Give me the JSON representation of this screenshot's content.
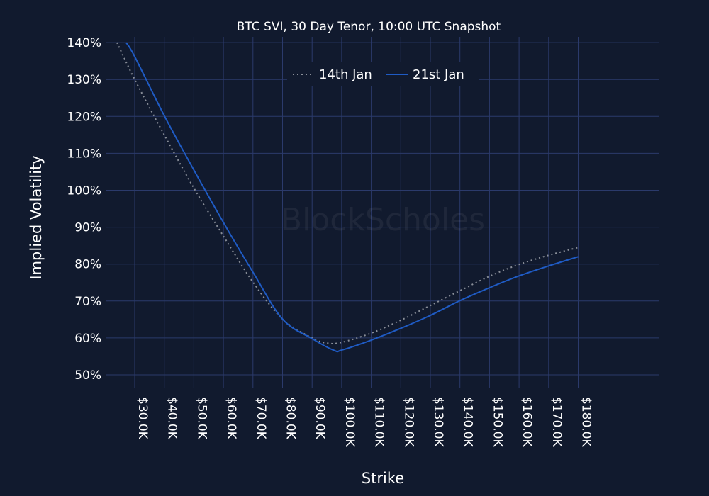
{
  "chart_data": {
    "type": "line",
    "title": "BTC SVI, 30 Day Tenor, 10:00 UTC Snapshot",
    "xlabel": "Strike",
    "ylabel": "Implied Volatility",
    "watermark": "BlockScholes",
    "x_ticks": [
      30000,
      40000,
      50000,
      60000,
      70000,
      80000,
      90000,
      100000,
      110000,
      120000,
      130000,
      140000,
      150000,
      160000,
      170000,
      180000
    ],
    "x_tick_labels": [
      "$30.0K",
      "$40.0K",
      "$50.0K",
      "$60.0K",
      "$70.0K",
      "$80.0K",
      "$90.0K",
      "$100.0K",
      "$110.0K",
      "$120.0K",
      "$130.0K",
      "$140.0K",
      "$150.0K",
      "$160.0K",
      "$170.0K",
      "$180.0K"
    ],
    "y_ticks": [
      50,
      60,
      70,
      80,
      90,
      100,
      110,
      120,
      130,
      140
    ],
    "y_tick_labels": [
      "50%",
      "60%",
      "70%",
      "80%",
      "90%",
      "100%",
      "110%",
      "120%",
      "130%",
      "140%"
    ],
    "ylim": [
      45,
      140
    ],
    "grid": true,
    "legend_position": "top-center",
    "series": [
      {
        "name": "14th Jan",
        "color": "#8a8f99",
        "style": "dotted",
        "x": [
          24000,
          30000,
          40000,
          50000,
          60000,
          70000,
          80000,
          90000,
          95000,
          100000,
          110000,
          120000,
          130000,
          140000,
          150000,
          160000,
          170000,
          180000
        ],
        "y": [
          140,
          130,
          115,
          100.6,
          87.6,
          75.1,
          65.1,
          60,
          58.6,
          58.8,
          61.3,
          64.8,
          68.8,
          72.8,
          76.7,
          79.9,
          82.4,
          84.5
        ]
      },
      {
        "name": "21st Jan",
        "color": "#1f5bc4",
        "style": "solid",
        "x": [
          27100,
          30000,
          40000,
          50000,
          60000,
          70000,
          80000,
          90000,
          97500,
          100000,
          110000,
          120000,
          130000,
          140000,
          150000,
          160000,
          170000,
          180000
        ],
        "y": [
          140,
          136.2,
          120.2,
          105.5,
          91.3,
          77.8,
          65.1,
          59.8,
          56.6,
          56.7,
          59.4,
          62.6,
          66.1,
          70.1,
          73.6,
          76.8,
          79.5,
          82.0
        ]
      }
    ]
  }
}
